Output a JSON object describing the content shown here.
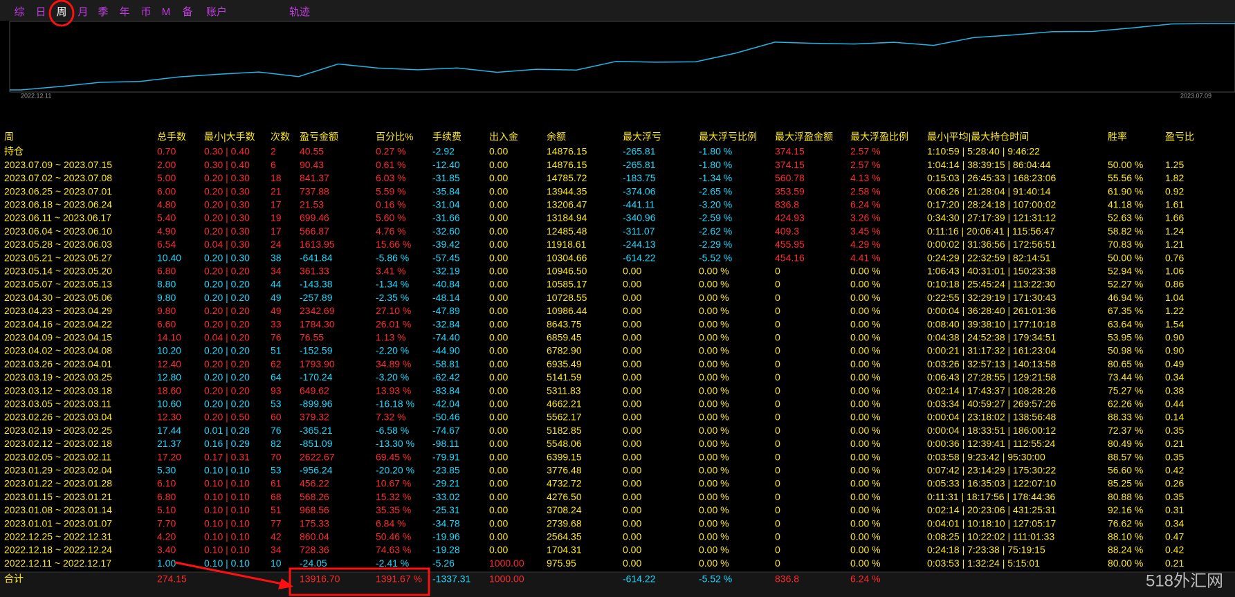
{
  "tabs": [
    "综",
    "日",
    "周",
    "月",
    "季",
    "年",
    "币",
    "M",
    "备",
    "账户",
    "轨迹"
  ],
  "active_tab": 2,
  "colors": {
    "profit": "#ff2a2a",
    "loss": "#19d9ff",
    "text": "#ffe81a",
    "tab": "#c23ee0",
    "active": "#ffffff",
    "curve": "#1fb6e8"
  },
  "chart": {
    "start_label": "2022.12.11",
    "end_label": "2023.07.09"
  },
  "table": {
    "headers": [
      "周",
      "总手数",
      "最小|大手数",
      "次数",
      "盈亏金额",
      "百分比%",
      "手续费",
      "出入金",
      "余额",
      "最大浮亏",
      "最大浮亏比例",
      "最大浮盈金额",
      "最大浮盈比例",
      "最小|平均|最大持仓时间",
      "胜率",
      "盈亏比"
    ],
    "rows": [
      [
        "持仓",
        "0.70",
        "0.30 | 0.40",
        "2",
        "40.55",
        "0.27 %",
        "-2.92",
        "0.00",
        "14876.15",
        "-265.81",
        "-1.80 %",
        "374.15",
        "2.57 %",
        "1:10:59 | 5:28:40 | 9:46:22",
        null,
        null
      ],
      [
        "2023.07.09 ~ 2023.07.15",
        "2.00",
        "0.30 | 0.40",
        "6",
        "90.43",
        "0.61 %",
        "-12.40",
        "0.00",
        "14876.15",
        "-265.81",
        "-1.80 %",
        "374.15",
        "2.57 %",
        "1:04:14 | 38:39:15 | 86:04:44",
        "50.00 %",
        "1.25"
      ],
      [
        "2023.07.02 ~ 2023.07.08",
        "5.00",
        "0.20 | 0.30",
        "18",
        "841.37",
        "6.03 %",
        "-31.85",
        "0.00",
        "14785.72",
        "-183.75",
        "-1.34 %",
        "560.78",
        "4.13 %",
        "0:15:03 | 26:45:33 | 168:23:06",
        "55.56 %",
        "1.82"
      ],
      [
        "2023.06.25 ~ 2023.07.01",
        "6.00",
        "0.20 | 0.30",
        "21",
        "737.88",
        "5.59 %",
        "-35.84",
        "0.00",
        "13944.35",
        "-374.06",
        "-2.65 %",
        "353.59",
        "2.58 %",
        "0:06:26 | 21:28:04 | 91:40:14",
        "61.90 %",
        "0.92"
      ],
      [
        "2023.06.18 ~ 2023.06.24",
        "4.80",
        "0.20 | 0.30",
        "17",
        "21.53",
        "0.16 %",
        "-31.04",
        "0.00",
        "13206.47",
        "-441.11",
        "-3.20 %",
        "836.8",
        "6.24 %",
        "0:17:20 | 28:24:18 | 107:00:02",
        "41.18 %",
        "1.61"
      ],
      [
        "2023.06.11 ~ 2023.06.17",
        "5.40",
        "0.20 | 0.30",
        "19",
        "699.46",
        "5.60 %",
        "-31.66",
        "0.00",
        "13184.94",
        "-340.96",
        "-2.59 %",
        "424.93",
        "3.26 %",
        "0:34:30 | 27:17:39 | 121:31:12",
        "52.63 %",
        "1.66"
      ],
      [
        "2023.06.04 ~ 2023.06.10",
        "4.90",
        "0.20 | 0.30",
        "17",
        "566.87",
        "4.76 %",
        "-32.60",
        "0.00",
        "12485.48",
        "-311.07",
        "-2.62 %",
        "409.3",
        "3.45 %",
        "0:11:16 | 20:06:41 | 115:56:47",
        "58.82 %",
        "1.24"
      ],
      [
        "2023.05.28 ~ 2023.06.03",
        "6.54",
        "0.04 | 0.30",
        "24",
        "1613.95",
        "15.66 %",
        "-39.42",
        "0.00",
        "11918.61",
        "-244.13",
        "-2.29 %",
        "455.95",
        "4.29 %",
        "0:00:02 | 31:36:56 | 172:56:51",
        "70.83 %",
        "1.21"
      ],
      [
        "2023.05.21 ~ 2023.05.27",
        "10.40",
        "0.20 | 0.30",
        "38",
        "-641.84",
        "-5.86 %",
        "-57.45",
        "0.00",
        "10304.66",
        "-614.22",
        "-5.52 %",
        "454.16",
        "4.41 %",
        "0:24:29 | 22:32:59 | 82:14:51",
        "50.00 %",
        "0.76"
      ],
      [
        "2023.05.14 ~ 2023.05.20",
        "6.80",
        "0.20 | 0.20",
        "34",
        "361.33",
        "3.41 %",
        "-32.19",
        "0.00",
        "10946.50",
        "0.00",
        "0.00 %",
        "0",
        "0.00 %",
        "1:06:43 | 40:31:01 | 150:23:38",
        "52.94 %",
        "1.06"
      ],
      [
        "2023.05.07 ~ 2023.05.13",
        "8.80",
        "0.20 | 0.20",
        "44",
        "-143.38",
        "-1.34 %",
        "-40.84",
        "0.00",
        "10585.17",
        "0.00",
        "0.00 %",
        "0",
        "0.00 %",
        "0:10:18 | 25:45:24 | 113:22:30",
        "52.27 %",
        "0.86"
      ],
      [
        "2023.04.30 ~ 2023.05.06",
        "9.80",
        "0.20 | 0.20",
        "49",
        "-257.89",
        "-2.35 %",
        "-48.14",
        "0.00",
        "10728.55",
        "0.00",
        "0.00 %",
        "0",
        "0.00 %",
        "0:22:55 | 32:29:19 | 171:30:43",
        "46.94 %",
        "1.04"
      ],
      [
        "2023.04.23 ~ 2023.04.29",
        "9.80",
        "0.20 | 0.20",
        "49",
        "2342.69",
        "27.10 %",
        "-47.89",
        "0.00",
        "10986.44",
        "0.00",
        "0.00 %",
        "0",
        "0.00 %",
        "0:00:04 | 36:28:40 | 261:01:36",
        "67.35 %",
        "1.22"
      ],
      [
        "2023.04.16 ~ 2023.04.22",
        "6.60",
        "0.20 | 0.20",
        "33",
        "1784.30",
        "26.01 %",
        "-32.84",
        "0.00",
        "8643.75",
        "0.00",
        "0.00 %",
        "0",
        "0.00 %",
        "0:08:40 | 39:38:10 | 177:10:18",
        "63.64 %",
        "1.54"
      ],
      [
        "2023.04.09 ~ 2023.04.15",
        "14.10",
        "0.04 | 0.20",
        "76",
        "76.55",
        "1.13 %",
        "-74.40",
        "0.00",
        "6859.45",
        "0.00",
        "0.00 %",
        "0",
        "0.00 %",
        "0:04:38 | 24:52:38 | 179:34:51",
        "53.95 %",
        "0.90"
      ],
      [
        "2023.04.02 ~ 2023.04.08",
        "10.20",
        "0.20 | 0.20",
        "51",
        "-152.59",
        "-2.20 %",
        "-44.90",
        "0.00",
        "6782.90",
        "0.00",
        "0.00 %",
        "0",
        "0.00 %",
        "0:00:21 | 31:17:32 | 161:23:04",
        "50.98 %",
        "0.90"
      ],
      [
        "2023.03.26 ~ 2023.04.01",
        "12.40",
        "0.20 | 0.20",
        "62",
        "1793.90",
        "34.89 %",
        "-58.81",
        "0.00",
        "6935.49",
        "0.00",
        "0.00 %",
        "0",
        "0.00 %",
        "0:03:26 | 32:57:13 | 140:13:58",
        "80.65 %",
        "0.49"
      ],
      [
        "2023.03.19 ~ 2023.03.25",
        "12.80",
        "0.20 | 0.20",
        "64",
        "-170.24",
        "-3.20 %",
        "-62.42",
        "0.00",
        "5141.59",
        "0.00",
        "0.00 %",
        "0",
        "0.00 %",
        "0:06:43 | 27:28:55 | 129:21:58",
        "73.44 %",
        "0.34"
      ],
      [
        "2023.03.12 ~ 2023.03.18",
        "18.60",
        "0.20 | 0.20",
        "93",
        "649.62",
        "13.93 %",
        "-83.84",
        "0.00",
        "5311.83",
        "0.00",
        "0.00 %",
        "0",
        "0.00 %",
        "0:02:14 | 17:43:37 | 108:28:26",
        "75.27 %",
        "0.38"
      ],
      [
        "2023.03.05 ~ 2023.03.11",
        "10.60",
        "0.20 | 0.20",
        "53",
        "-899.96",
        "-16.18 %",
        "-42.04",
        "0.00",
        "4662.21",
        "0.00",
        "0.00 %",
        "0",
        "0.00 %",
        "0:03:34 | 40:59:27 | 269:57:26",
        "62.26 %",
        "0.44"
      ],
      [
        "2023.02.26 ~ 2023.03.04",
        "12.30",
        "0.20 | 0.50",
        "60",
        "379.32",
        "7.32 %",
        "-50.46",
        "0.00",
        "5562.17",
        "0.00",
        "0.00 %",
        "0",
        "0.00 %",
        "0:00:04 | 23:18:02 | 138:56:48",
        "88.33 %",
        "0.14"
      ],
      [
        "2023.02.19 ~ 2023.02.25",
        "17.44",
        "0.01 | 0.28",
        "76",
        "-365.21",
        "-6.58 %",
        "-74.67",
        "0.00",
        "5182.85",
        "0.00",
        "0.00 %",
        "0",
        "0.00 %",
        "0:00:04 | 18:33:51 | 186:00:12",
        "72.37 %",
        "0.35"
      ],
      [
        "2023.02.12 ~ 2023.02.18",
        "21.37",
        "0.16 | 0.29",
        "82",
        "-851.09",
        "-13.30 %",
        "-98.11",
        "0.00",
        "5548.06",
        "0.00",
        "0.00 %",
        "0",
        "0.00 %",
        "0:00:36 | 12:39:41 | 112:55:24",
        "80.49 %",
        "0.21"
      ],
      [
        "2023.02.05 ~ 2023.02.11",
        "17.20",
        "0.17 | 0.31",
        "70",
        "2622.67",
        "69.45 %",
        "-79.91",
        "0.00",
        "6399.15",
        "0.00",
        "0.00 %",
        "0",
        "0.00 %",
        "0:03:58 | 9:23:42 | 95:30:00",
        "88.57 %",
        "0.35"
      ],
      [
        "2023.01.29 ~ 2023.02.04",
        "5.30",
        "0.10 | 0.10",
        "53",
        "-956.24",
        "-20.20 %",
        "-23.85",
        "0.00",
        "3776.48",
        "0.00",
        "0.00 %",
        "0",
        "0.00 %",
        "0:07:42 | 23:14:29 | 175:30:22",
        "56.60 %",
        "0.42"
      ],
      [
        "2023.01.22 ~ 2023.01.28",
        "6.10",
        "0.10 | 0.10",
        "61",
        "456.22",
        "10.67 %",
        "-29.21",
        "0.00",
        "4732.72",
        "0.00",
        "0.00 %",
        "0",
        "0.00 %",
        "0:05:33 | 16:35:03 | 122:07:10",
        "85.25 %",
        "0.26"
      ],
      [
        "2023.01.15 ~ 2023.01.21",
        "6.80",
        "0.10 | 0.10",
        "68",
        "568.26",
        "15.32 %",
        "-33.02",
        "0.00",
        "4276.50",
        "0.00",
        "0.00 %",
        "0",
        "0.00 %",
        "0:11:31 | 18:17:56 | 178:44:36",
        "80.88 %",
        "0.35"
      ],
      [
        "2023.01.08 ~ 2023.01.14",
        "5.10",
        "0.10 | 0.10",
        "51",
        "968.56",
        "35.35 %",
        "-25.31",
        "0.00",
        "3708.24",
        "0.00",
        "0.00 %",
        "0",
        "0.00 %",
        "0:02:14 | 20:23:06 | 431:25:31",
        "92.16 %",
        "0.31"
      ],
      [
        "2023.01.01 ~ 2023.01.07",
        "7.70",
        "0.10 | 0.10",
        "77",
        "175.33",
        "6.84 %",
        "-34.78",
        "0.00",
        "2739.68",
        "0.00",
        "0.00 %",
        "0",
        "0.00 %",
        "0:04:01 | 10:18:10 | 127:05:17",
        "76.62 %",
        "0.34"
      ],
      [
        "2022.12.25 ~ 2022.12.31",
        "4.20",
        "0.10 | 0.10",
        "42",
        "860.04",
        "50.46 %",
        "-19.96",
        "0.00",
        "2564.35",
        "0.00",
        "0.00 %",
        "0",
        "0.00 %",
        "0:08:25 | 10:22:02 | 111:01:33",
        "88.10 %",
        "0.47"
      ],
      [
        "2022.12.18 ~ 2022.12.24",
        "3.40",
        "0.10 | 0.10",
        "34",
        "728.36",
        "74.63 %",
        "-19.28",
        "0.00",
        "1704.31",
        "0.00",
        "0.00 %",
        "0",
        "0.00 %",
        "0:24:18 | 7:23:38 | 75:19:15",
        "88.24 %",
        "0.42"
      ],
      [
        "2022.12.11 ~ 2022.12.17",
        "1.00",
        "0.10 | 0.10",
        "10",
        "-24.05",
        "-2.41 %",
        "-5.26",
        "1000.00",
        "975.95",
        "0.00",
        "0.00 %",
        "0",
        "0.00 %",
        "0:03:53 | 1:32:24 | 5:15:01",
        "80.00 %",
        "0.21"
      ]
    ],
    "total": [
      "合计",
      "274.15",
      null,
      null,
      "13916.70",
      "1391.67 %",
      "-1337.31",
      "1000.00",
      null,
      "-614.22",
      "-5.52 %",
      "836.8",
      "6.24 %",
      null,
      null,
      null
    ]
  },
  "watermark": "518外汇网"
}
